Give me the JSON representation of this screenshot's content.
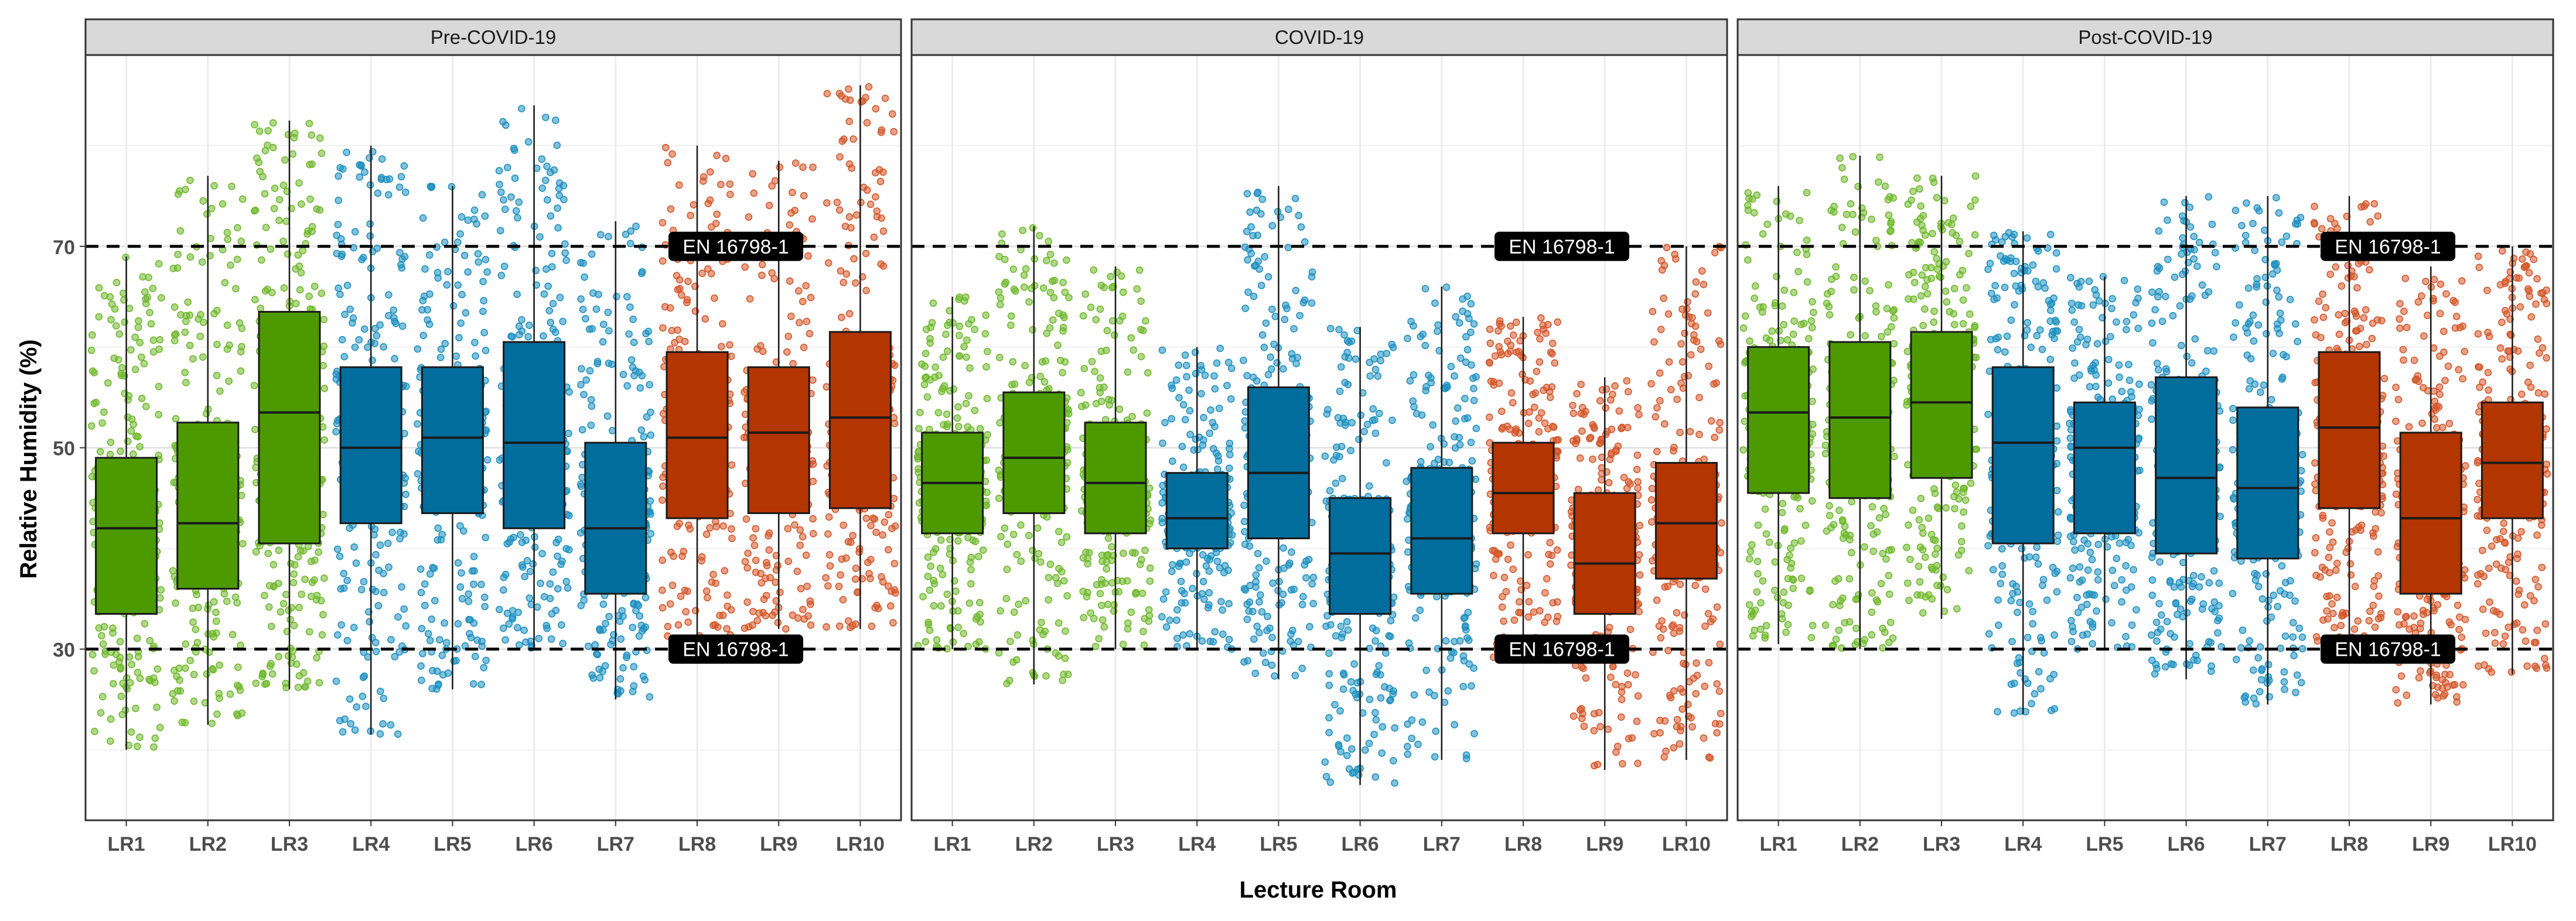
{
  "colors": {
    "green": "#4C9A00",
    "green_point": "#6FB82C",
    "blue": "#006D9C",
    "blue_point": "#1E90C0",
    "red": "#B33500",
    "red_point": "#D4572A",
    "strip": "#D9D9D9",
    "threshold_label_bg": "#000000"
  },
  "chart_data": {
    "type": "boxplot",
    "xlabel": "Lecture Room",
    "ylabel": "Relative Humidity (%)",
    "ylim": [
      13,
      89
    ],
    "yticks": [
      30,
      50,
      70
    ],
    "grid": true,
    "categories": [
      "LR1",
      "LR2",
      "LR3",
      "LR4",
      "LR5",
      "LR6",
      "LR7",
      "LR8",
      "LR9",
      "LR10"
    ],
    "room_groups": [
      "green",
      "green",
      "green",
      "blue",
      "blue",
      "blue",
      "blue",
      "red",
      "red",
      "red"
    ],
    "thresholds": [
      {
        "value": 70,
        "label": "EN 16798-1"
      },
      {
        "value": 30,
        "label": "EN 16798-1"
      }
    ],
    "panels": [
      {
        "title": "Pre-COVID-19",
        "boxes": [
          {
            "min": 20,
            "q1": 33.5,
            "median": 42,
            "q3": 49,
            "max": 69
          },
          {
            "min": 22.5,
            "q1": 36,
            "median": 42.5,
            "q3": 52.5,
            "max": 77
          },
          {
            "min": 26,
            "q1": 40.5,
            "median": 53.5,
            "q3": 63.5,
            "max": 82.5
          },
          {
            "min": 21.5,
            "q1": 42.5,
            "median": 50,
            "q3": 58,
            "max": 80
          },
          {
            "min": 26,
            "q1": 43.5,
            "median": 51,
            "q3": 58,
            "max": 76
          },
          {
            "min": 30,
            "q1": 42,
            "median": 50.5,
            "q3": 60.5,
            "max": 84
          },
          {
            "min": 25,
            "q1": 35.5,
            "median": 42,
            "q3": 50.5,
            "max": 72.5
          },
          {
            "min": 29,
            "q1": 43,
            "median": 51,
            "q3": 59.5,
            "max": 80
          },
          {
            "min": 32,
            "q1": 43.5,
            "median": 51.5,
            "q3": 58,
            "max": 78.5
          },
          {
            "min": 32,
            "q1": 44,
            "median": 53,
            "q3": 61.5,
            "max": 86
          }
        ]
      },
      {
        "title": "COVID-19",
        "boxes": [
          {
            "min": 30,
            "q1": 41.5,
            "median": 46.5,
            "q3": 51.5,
            "max": 65
          },
          {
            "min": 26.5,
            "q1": 43.5,
            "median": 49,
            "q3": 55.5,
            "max": 72
          },
          {
            "min": 30,
            "q1": 41.5,
            "median": 46.5,
            "q3": 52.5,
            "max": 68
          },
          {
            "min": 30,
            "q1": 40,
            "median": 43,
            "q3": 47.5,
            "max": 60
          },
          {
            "min": 27,
            "q1": 41,
            "median": 47.5,
            "q3": 56,
            "max": 76
          },
          {
            "min": 16.5,
            "q1": 33.5,
            "median": 39.5,
            "q3": 45,
            "max": 62
          },
          {
            "min": 19,
            "q1": 35.5,
            "median": 41,
            "q3": 48,
            "max": 66
          },
          {
            "min": 29,
            "q1": 41.5,
            "median": 45.5,
            "q3": 50.5,
            "max": 63
          },
          {
            "min": 18,
            "q1": 33.5,
            "median": 38.5,
            "q3": 45.5,
            "max": 57
          },
          {
            "min": 19,
            "q1": 37,
            "median": 42.5,
            "q3": 48.5,
            "max": 70
          }
        ]
      },
      {
        "title": "Post-COVID-19",
        "boxes": [
          {
            "min": 30.5,
            "q1": 45.5,
            "median": 53.5,
            "q3": 60,
            "max": 76
          },
          {
            "min": 30,
            "q1": 45,
            "median": 53,
            "q3": 60.5,
            "max": 79
          },
          {
            "min": 33,
            "q1": 47,
            "median": 54.5,
            "q3": 61.5,
            "max": 77
          },
          {
            "min": 23.5,
            "q1": 40.5,
            "median": 50.5,
            "q3": 58,
            "max": 71.5
          },
          {
            "min": 30,
            "q1": 41.5,
            "median": 50,
            "q3": 54.5,
            "max": 67
          },
          {
            "min": 27,
            "q1": 39.5,
            "median": 47,
            "q3": 57,
            "max": 75
          },
          {
            "min": 24.5,
            "q1": 39,
            "median": 46,
            "q3": 54,
            "max": 75
          },
          {
            "min": 30.5,
            "q1": 44,
            "median": 52,
            "q3": 59.5,
            "max": 75
          },
          {
            "min": 24.5,
            "q1": 35.5,
            "median": 43,
            "q3": 51.5,
            "max": 68
          },
          {
            "min": 27.5,
            "q1": 43,
            "median": 48.5,
            "q3": 54.5,
            "max": 70
          }
        ]
      }
    ]
  }
}
